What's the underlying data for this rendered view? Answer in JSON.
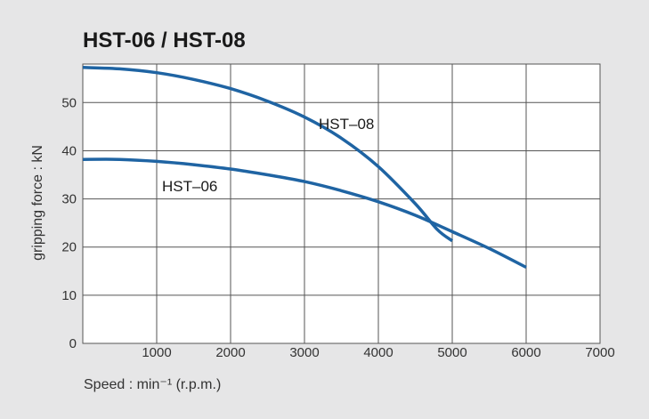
{
  "chart_data": {
    "type": "line",
    "title": "HST-06 / HST-08",
    "xlabel": "Speed : min⁻¹ (r.p.m.)",
    "ylabel": "gripping force : kN",
    "xlim": [
      0,
      7000
    ],
    "ylim": [
      0,
      58
    ],
    "x_ticks": [
      "1000",
      "2000",
      "3000",
      "4000",
      "5000",
      "6000",
      "7000"
    ],
    "y_ticks": [
      "0",
      "10",
      "20",
      "30",
      "40",
      "50"
    ],
    "grid": true,
    "series": [
      {
        "name": "HST–08",
        "color": "#1f64a3",
        "x": [
          0,
          500,
          1000,
          1500,
          2000,
          2500,
          3000,
          3500,
          4000,
          4500,
          4800,
          5000
        ],
        "y": [
          57.3,
          57.0,
          56.2,
          54.8,
          52.9,
          50.3,
          47.0,
          42.6,
          36.7,
          29.0,
          23.6,
          21.3
        ]
      },
      {
        "name": "HST–06",
        "color": "#1f64a3",
        "x": [
          0,
          500,
          1000,
          1500,
          2000,
          2500,
          3000,
          3500,
          4000,
          4500,
          5000,
          5500,
          6000
        ],
        "y": [
          38.2,
          38.2,
          37.8,
          37.1,
          36.2,
          35.0,
          33.6,
          31.7,
          29.4,
          26.6,
          23.2,
          19.7,
          15.8
        ]
      }
    ]
  }
}
